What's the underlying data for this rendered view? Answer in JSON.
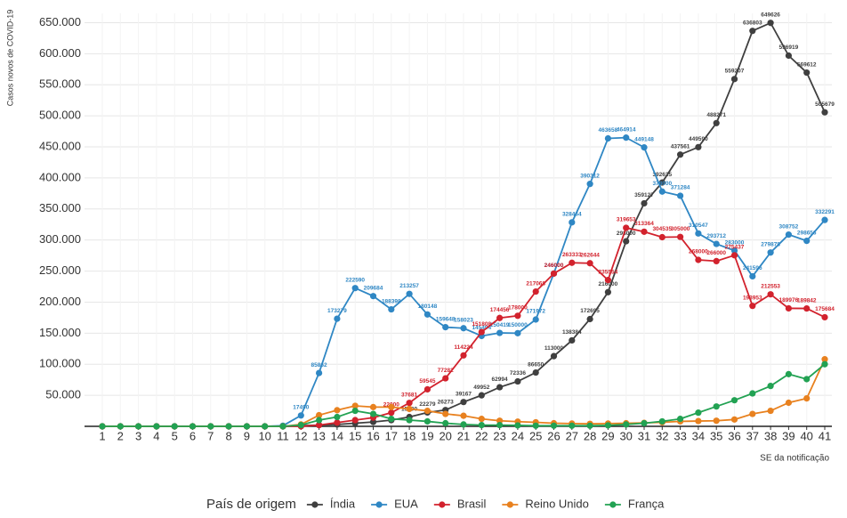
{
  "chart_data": {
    "type": "line",
    "ylabel": "Casos novos de COVID-19",
    "xlabel": "SE da notificação",
    "legend_title": "País de origem",
    "legend": "bottom",
    "grid": true,
    "categories": [
      1,
      2,
      3,
      4,
      5,
      6,
      7,
      8,
      9,
      10,
      11,
      12,
      13,
      14,
      15,
      16,
      17,
      18,
      19,
      20,
      21,
      22,
      23,
      24,
      25,
      26,
      27,
      28,
      29,
      30,
      31,
      32,
      33,
      34,
      35,
      36,
      37,
      38,
      39,
      40,
      41
    ],
    "ylim": [
      0,
      665000
    ],
    "yticks": [
      {
        "value": 50000,
        "label": "50.000"
      },
      {
        "value": 100000,
        "label": "100.000"
      },
      {
        "value": 150000,
        "label": "150.000"
      },
      {
        "value": 200000,
        "label": "200.000"
      },
      {
        "value": 250000,
        "label": "250.000"
      },
      {
        "value": 300000,
        "label": "300.000"
      },
      {
        "value": 350000,
        "label": "350.000"
      },
      {
        "value": 400000,
        "label": "400.000"
      },
      {
        "value": 450000,
        "label": "450.000"
      },
      {
        "value": 500000,
        "label": "500.000"
      },
      {
        "value": 550000,
        "label": "550.000"
      },
      {
        "value": 600000,
        "label": "600.000"
      },
      {
        "value": 650000,
        "label": "650.000"
      }
    ],
    "series": [
      {
        "name": "Índia",
        "color": "#3f3f3f",
        "values": [
          0,
          0,
          0,
          0,
          0,
          0,
          0,
          0,
          0,
          0,
          0,
          1000,
          2000,
          3000,
          5000,
          7000,
          10000,
          15000,
          22279,
          26273,
          39167,
          49952,
          62994,
          72336,
          86650,
          113000,
          138384,
          172695,
          216000,
          298000,
          359127,
          392625,
          437561,
          449590,
          488271,
          559207,
          636803,
          649626,
          596919,
          569612,
          505679
        ]
      },
      {
        "name": "EUA",
        "color": "#2f87c4",
        "values": [
          0,
          0,
          0,
          0,
          0,
          0,
          0,
          0,
          0,
          0,
          1000,
          17490,
          85862,
          173279,
          222590,
          209684,
          188398,
          213257,
          180148,
          159648,
          158023,
          145494,
          150419,
          150000,
          171972,
          246000,
          328464,
          390312,
          463658,
          464914,
          449148,
          378000,
          371284,
          310547,
          293712,
          283000,
          241596,
          279878,
          308752,
          298656,
          332291
        ]
      },
      {
        "name": "Brasil",
        "color": "#d2222d",
        "values": [
          0,
          0,
          0,
          0,
          0,
          0,
          0,
          0,
          0,
          0,
          0,
          0,
          2000,
          6000,
          10000,
          14000,
          22000,
          37681,
          59545,
          77282,
          114224,
          151808,
          174456,
          178000,
          217068,
          246000,
          263333,
          262644,
          235554,
          319653,
          313364,
          304535,
          305000,
          268000,
          266000,
          275437,
          193953,
          212553,
          189976,
          189842,
          175684
        ]
      },
      {
        "name": "Reino Unido",
        "color": "#e8811f",
        "values": [
          0,
          0,
          0,
          0,
          0,
          0,
          0,
          0,
          0,
          0,
          0,
          3000,
          18000,
          26000,
          33000,
          31000,
          31000,
          28000,
          25000,
          20000,
          17000,
          12000,
          9000,
          7500,
          6500,
          5000,
          4500,
          4000,
          4500,
          5000,
          5500,
          6500,
          8000,
          8500,
          9000,
          11000,
          20000,
          25000,
          38000,
          45000,
          108000
        ]
      },
      {
        "name": "França",
        "color": "#22a253",
        "values": [
          0,
          0,
          0,
          0,
          0,
          0,
          0,
          0,
          0,
          0,
          0,
          2000,
          10000,
          15000,
          25000,
          20000,
          12000,
          10000,
          8000,
          5000,
          3000,
          2000,
          2000,
          1500,
          1000,
          1000,
          1000,
          1000,
          1500,
          3000,
          5000,
          8000,
          12000,
          22000,
          32000,
          42000,
          53000,
          65000,
          84000,
          76000,
          100000
        ]
      }
    ]
  }
}
